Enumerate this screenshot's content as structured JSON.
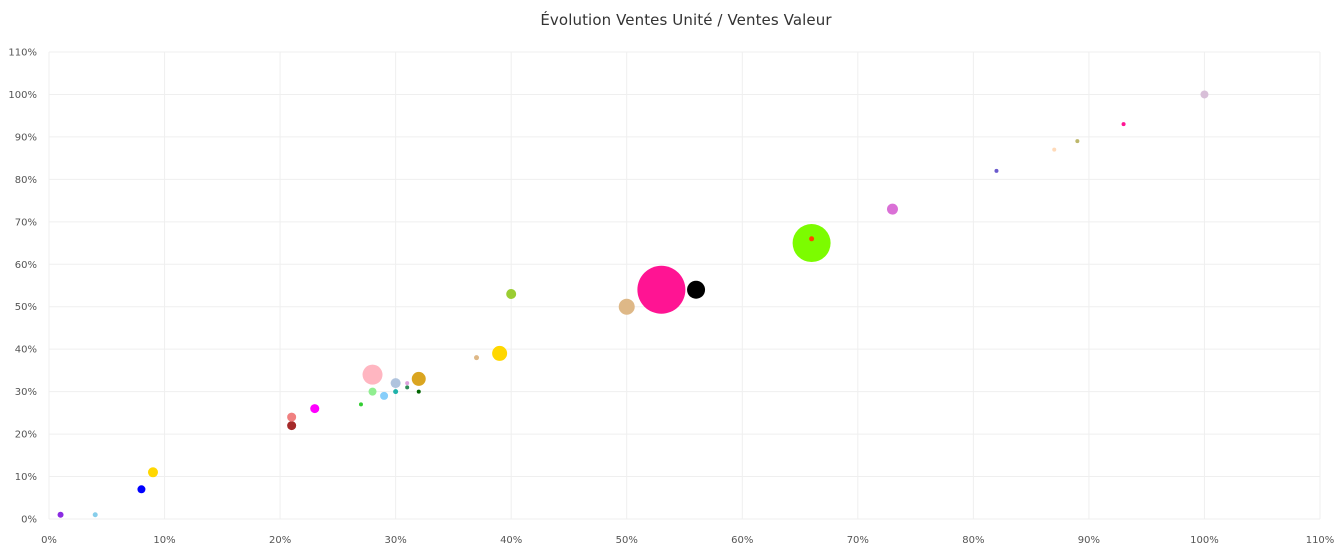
{
  "chart_data": {
    "type": "scatter",
    "title": "Évolution Ventes Unité / Ventes Valeur",
    "xlabel": "",
    "ylabel": "",
    "xlim": [
      0,
      110
    ],
    "ylim": [
      0,
      110
    ],
    "x_ticks": [
      "0%",
      "10%",
      "20%",
      "30%",
      "40%",
      "50%",
      "60%",
      "70%",
      "80%",
      "90%",
      "100%",
      "110%"
    ],
    "y_ticks": [
      "0%",
      "10%",
      "20%",
      "30%",
      "40%",
      "50%",
      "60%",
      "70%",
      "80%",
      "90%",
      "100%",
      "110%"
    ],
    "grid": true,
    "legend": "none",
    "points": [
      {
        "x": 1,
        "y": 1,
        "size": 3,
        "color": "#8a2be2"
      },
      {
        "x": 4,
        "y": 1,
        "size": 2.5,
        "color": "#87ceeb"
      },
      {
        "x": 8,
        "y": 7,
        "size": 4,
        "color": "#0000ff"
      },
      {
        "x": 9,
        "y": 11,
        "size": 5,
        "color": "#ffd700"
      },
      {
        "x": 21,
        "y": 22,
        "size": 4.5,
        "color": "#a52a2a"
      },
      {
        "x": 21,
        "y": 24,
        "size": 4.5,
        "color": "#f08080"
      },
      {
        "x": 23,
        "y": 26,
        "size": 4.5,
        "color": "#ff00ff"
      },
      {
        "x": 27,
        "y": 27,
        "size": 2,
        "color": "#32cd32"
      },
      {
        "x": 28,
        "y": 30,
        "size": 4,
        "color": "#90ee90"
      },
      {
        "x": 28,
        "y": 34,
        "size": 10,
        "color": "#ffb6c1"
      },
      {
        "x": 29,
        "y": 29,
        "size": 4,
        "color": "#87cefa"
      },
      {
        "x": 30,
        "y": 30,
        "size": 2.5,
        "color": "#20b2aa"
      },
      {
        "x": 30,
        "y": 32,
        "size": 5,
        "color": "#b0c4de"
      },
      {
        "x": 31,
        "y": 31,
        "size": 2,
        "color": "#2e8b57"
      },
      {
        "x": 31,
        "y": 32,
        "size": 2,
        "color": "#dda0dd"
      },
      {
        "x": 32,
        "y": 30,
        "size": 2,
        "color": "#006400"
      },
      {
        "x": 32,
        "y": 33,
        "size": 7,
        "color": "#daa520"
      },
      {
        "x": 37,
        "y": 38,
        "size": 2.5,
        "color": "#deb887"
      },
      {
        "x": 39,
        "y": 39,
        "size": 7.5,
        "color": "#ffd700"
      },
      {
        "x": 40,
        "y": 53,
        "size": 5,
        "color": "#9acd32"
      },
      {
        "x": 50,
        "y": 50,
        "size": 8,
        "color": "#deb887"
      },
      {
        "x": 53,
        "y": 54,
        "size": 24,
        "color": "#ff1493"
      },
      {
        "x": 56,
        "y": 54,
        "size": 9,
        "color": "#000000"
      },
      {
        "x": 66,
        "y": 65,
        "size": 19,
        "color": "#7cfc00"
      },
      {
        "x": 66,
        "y": 66,
        "size": 2.5,
        "color": "#ff4500"
      },
      {
        "x": 73,
        "y": 73,
        "size": 5.5,
        "color": "#da70d6"
      },
      {
        "x": 82,
        "y": 82,
        "size": 2,
        "color": "#6a5acd"
      },
      {
        "x": 87,
        "y": 87,
        "size": 2,
        "color": "#ffdab9"
      },
      {
        "x": 89,
        "y": 89,
        "size": 2,
        "color": "#bdb76b"
      },
      {
        "x": 93,
        "y": 93,
        "size": 2,
        "color": "#ff1493"
      },
      {
        "x": 100,
        "y": 100,
        "size": 4,
        "color": "#d8bfd8"
      }
    ]
  }
}
